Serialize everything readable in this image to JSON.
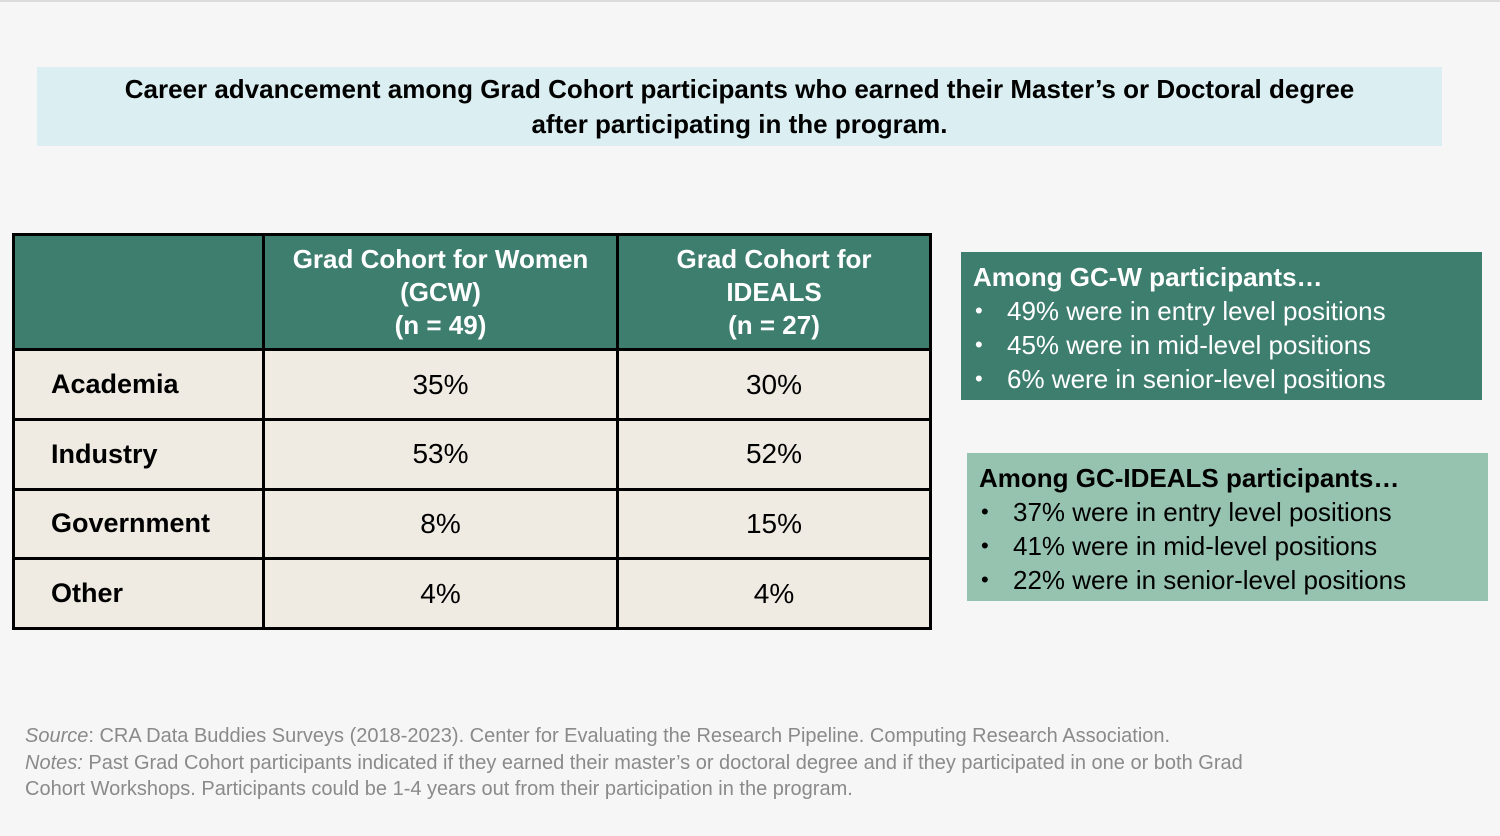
{
  "title": {
    "line1": "Career advancement among Grad Cohort participants who earned their Master’s or Doctoral degree",
    "line2": "after participating in the program."
  },
  "table": {
    "columns": [
      {
        "line1": "Grad Cohort for Women",
        "line2": "(GCW)",
        "line3": "(n = 49)"
      },
      {
        "line1": "Grad Cohort for",
        "line2": "IDEALS",
        "line3": "(n = 27)"
      }
    ],
    "rows": [
      {
        "label": "Academia",
        "gcw": "35%",
        "ideals": "30%"
      },
      {
        "label": "Industry",
        "gcw": "53%",
        "ideals": "52%"
      },
      {
        "label": "Government",
        "gcw": "8%",
        "ideals": "15%"
      },
      {
        "label": "Other",
        "gcw": "4%",
        "ideals": "4%"
      }
    ]
  },
  "gcw_box": {
    "heading": "Among GC-W participants…",
    "bullet": "•",
    "items": [
      "49% were in entry level positions",
      "45% were in mid-level positions",
      "6% were in senior-level positions"
    ]
  },
  "ideals_box": {
    "heading": "Among GC-IDEALS participants…",
    "bullet": "•",
    "items": [
      "37% were in entry level positions",
      "41% were in mid-level positions",
      "22% were in senior-level positions"
    ]
  },
  "footnote": {
    "source_label": "Source",
    "source_text": ": CRA Data Buddies Surveys (2018-2023). Center for Evaluating the Research Pipeline. Computing Research Association.",
    "notes_label": "Notes:",
    "notes_line1": " Past Grad Cohort participants indicated if they earned their master’s or doctoral degree and if they participated in one or both Grad",
    "notes_line2": "Cohort Workshops. Participants could be 1-4 years out from their participation in the program."
  },
  "colors": {
    "header_green": "#3e7e6f",
    "light_green": "#96c2b0",
    "title_bg": "#dbeef1",
    "cell_bg": "#efebe3"
  }
}
